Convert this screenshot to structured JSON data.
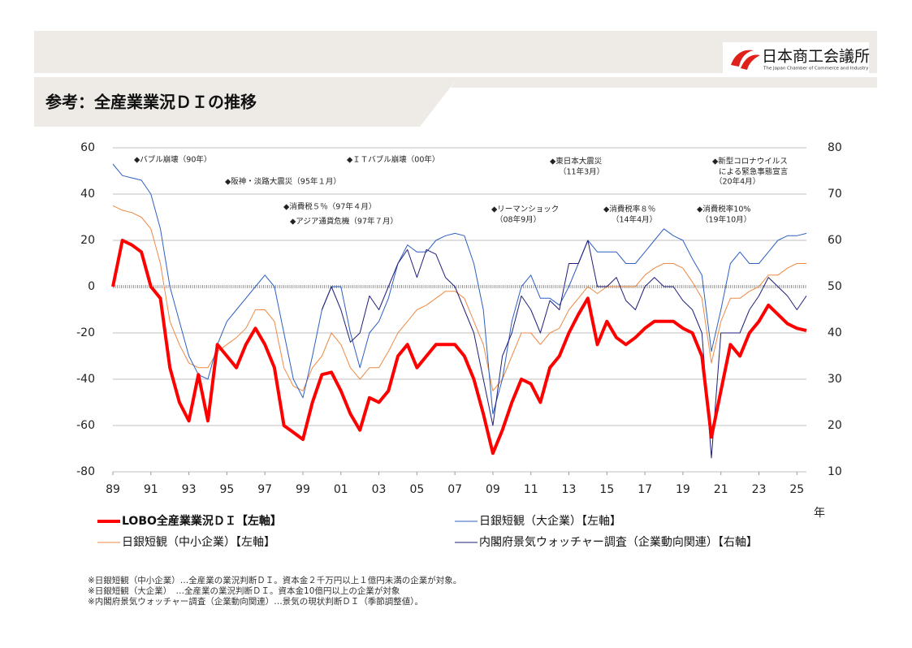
{
  "header": {
    "title": "参考：全産業業況ＤＩの推移",
    "logo_name": "日本商工会議所",
    "logo_sub": "The Japan Chamber of Commerce and Industry"
  },
  "chart_data": {
    "type": "line",
    "x": [
      1989,
      1989.5,
      1990,
      1990.5,
      1991,
      1991.5,
      1992,
      1992.5,
      1993,
      1993.5,
      1994,
      1994.5,
      1995,
      1995.5,
      1996,
      1996.5,
      1997,
      1997.5,
      1998,
      1998.5,
      1999,
      1999.5,
      2000,
      2000.5,
      2001,
      2001.5,
      2002,
      2002.5,
      2003,
      2003.5,
      2004,
      2004.5,
      2005,
      2005.5,
      2006,
      2006.5,
      2007,
      2007.5,
      2008,
      2008.5,
      2009,
      2009.5,
      2010,
      2010.5,
      2011,
      2011.5,
      2012,
      2012.5,
      2013,
      2013.5,
      2014,
      2014.5,
      2015,
      2015.5,
      2016,
      2016.5,
      2017,
      2017.5,
      2018,
      2018.5,
      2019,
      2019.5,
      2020,
      2020.5,
      2021,
      2021.5,
      2022,
      2022.5,
      2023,
      2023.5,
      2024,
      2024.5,
      2025,
      2025.5
    ],
    "series": [
      {
        "name": "LOBO全産業業況ＤＩ【左軸】",
        "color": "#ff0000",
        "values": [
          0,
          20,
          18,
          15,
          0,
          -5,
          -35,
          -50,
          -58,
          -38,
          -58,
          -25,
          -30,
          -35,
          -25,
          -18,
          -25,
          -35,
          -60,
          -63,
          -66,
          -50,
          -38,
          -37,
          -45,
          -55,
          -62,
          -48,
          -50,
          -45,
          -30,
          -25,
          -35,
          -30,
          -25,
          -25,
          -25,
          -30,
          -40,
          -55,
          -72,
          -62,
          -50,
          -40,
          -42,
          -50,
          -35,
          -30,
          -20,
          -12,
          -5,
          -25,
          -15,
          -22,
          -25,
          -22,
          -18,
          -15,
          -15,
          -15,
          -18,
          -20,
          -30,
          -65,
          -45,
          -25,
          -30,
          -20,
          -15,
          -8,
          -12,
          -16,
          -18,
          -19
        ]
      },
      {
        "name": "日銀短観（大企業）【左軸】",
        "color": "#2e5fc1",
        "values": [
          53,
          48,
          47,
          46,
          40,
          25,
          0,
          -15,
          -30,
          -38,
          -40,
          -25,
          -15,
          -10,
          -5,
          0,
          5,
          0,
          -20,
          -40,
          -48,
          -30,
          -10,
          0,
          0,
          -20,
          -35,
          -20,
          -15,
          -5,
          10,
          18,
          15,
          15,
          20,
          22,
          23,
          22,
          10,
          -10,
          -55,
          -40,
          -15,
          0,
          5,
          -5,
          -5,
          -8,
          0,
          10,
          20,
          15,
          15,
          15,
          10,
          10,
          15,
          20,
          25,
          22,
          20,
          12,
          5,
          -28,
          -10,
          10,
          15,
          10,
          10,
          15,
          20,
          22,
          22,
          23
        ]
      },
      {
        "name": "日銀短観（中小企業）【左軸】",
        "color": "#ed8a45",
        "values": [
          35,
          33,
          32,
          30,
          25,
          10,
          -15,
          -25,
          -33,
          -35,
          -35,
          -28,
          -25,
          -22,
          -18,
          -10,
          -10,
          -15,
          -35,
          -43,
          -45,
          -35,
          -30,
          -20,
          -25,
          -35,
          -40,
          -35,
          -35,
          -28,
          -20,
          -15,
          -10,
          -8,
          -5,
          -2,
          -2,
          -5,
          -15,
          -25,
          -45,
          -40,
          -30,
          -20,
          -20,
          -25,
          -20,
          -18,
          -10,
          -5,
          0,
          -3,
          0,
          0,
          0,
          0,
          5,
          8,
          10,
          10,
          8,
          2,
          -5,
          -33,
          -15,
          -5,
          -5,
          -2,
          0,
          5,
          5,
          8,
          10,
          10
        ]
      },
      {
        "name": "内閣府景気ウォッチャー調査（企業動向関連）【右軸】",
        "color": "#1f1f7a",
        "axis": "y2",
        "values": [
          null,
          null,
          null,
          null,
          null,
          null,
          null,
          null,
          null,
          null,
          null,
          null,
          null,
          null,
          null,
          null,
          null,
          null,
          null,
          null,
          null,
          null,
          45,
          50,
          45,
          38,
          40,
          48,
          45,
          50,
          55,
          58,
          52,
          58,
          57,
          52,
          50,
          45,
          40,
          30,
          20,
          35,
          40,
          48,
          45,
          40,
          47,
          45,
          55,
          55,
          60,
          50,
          50,
          52,
          47,
          45,
          50,
          52,
          50,
          50,
          47,
          45,
          40,
          13,
          40,
          40,
          40,
          45,
          48,
          52,
          50,
          48,
          45,
          48
        ]
      }
    ],
    "xlim": [
      1989,
      2025.5
    ],
    "xticks": [
      {
        "value": 1989,
        "label": "89"
      },
      {
        "value": 1991,
        "label": "91"
      },
      {
        "value": 1993,
        "label": "93"
      },
      {
        "value": 1995,
        "label": "95"
      },
      {
        "value": 1997,
        "label": "97"
      },
      {
        "value": 1999,
        "label": "99"
      },
      {
        "value": 2001,
        "label": "01"
      },
      {
        "value": 2003,
        "label": "03"
      },
      {
        "value": 2005,
        "label": "05"
      },
      {
        "value": 2007,
        "label": "07"
      },
      {
        "value": 2009,
        "label": "09"
      },
      {
        "value": 2011,
        "label": "11"
      },
      {
        "value": 2013,
        "label": "13"
      },
      {
        "value": 2015,
        "label": "15"
      },
      {
        "value": 2017,
        "label": "17"
      },
      {
        "value": 2019,
        "label": "19"
      },
      {
        "value": 2021,
        "label": "21"
      },
      {
        "value": 2023,
        "label": "23"
      },
      {
        "value": 2025,
        "label": "25"
      }
    ],
    "x_label": "年",
    "ylim": [
      -80,
      60
    ],
    "yticks": [
      -80,
      -60,
      -40,
      -20,
      0,
      20,
      40,
      60
    ],
    "y2lim": [
      10,
      80
    ],
    "y2ticks": [
      10,
      20,
      30,
      40,
      50,
      60,
      70,
      80
    ],
    "grid": true,
    "annotations": [
      "◆バブル崩壊（90年）",
      "◆阪神・淡路大震災（95年１月）",
      "◆消費税５％（97年４月）",
      "◆アジア通貨危機（97年７月）",
      "◆ＩＴバブル崩壊（00年）",
      "◆リーマンショック",
      "（08年9月）",
      "◆東日本大震災",
      "（11年3月）",
      "◆消費税率８％",
      "（14年4月）",
      "◆消費税率10%",
      "（19年10月）",
      "◆新型コロナウイルス",
      "による緊急事態宣言",
      "（20年4月）"
    ]
  },
  "footnotes": [
    "※日銀短観（中小企業）…全産業の業況判断ＤＩ。資本金２千万円以上１億円未満の企業が対象。",
    "※日銀短観（大企業）　…全産業の業況判断ＤＩ。資本金10億円以上の企業が対象",
    "※内閣府景気ウォッチャー調査（企業動向関連）…景気の現状判断ＤＩ（季節調整値）。"
  ]
}
